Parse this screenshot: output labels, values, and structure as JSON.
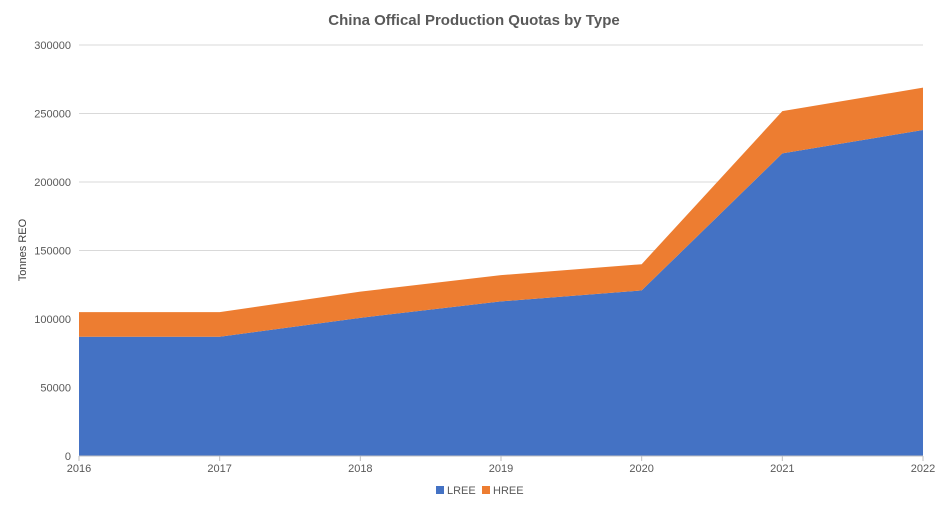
{
  "chart_data": {
    "type": "area",
    "stacked": true,
    "title": "China Offical Production Quotas by Type",
    "xlabel": "",
    "ylabel": "Tonnes REO",
    "categories": [
      "2016",
      "2017",
      "2018",
      "2019",
      "2020",
      "2021",
      "2022"
    ],
    "series": [
      {
        "name": "LREE",
        "color": "#4472C4",
        "values": [
          87000,
          87000,
          100850,
          112850,
          120850,
          220850,
          238000
        ]
      },
      {
        "name": "HREE",
        "color": "#ED7D31",
        "values": [
          18000,
          18000,
          19150,
          19150,
          19150,
          30850,
          30850
        ]
      }
    ],
    "ylim": [
      0,
      300000
    ],
    "yticks": [
      "0",
      "50000",
      "100000",
      "150000",
      "200000",
      "250000",
      "300000"
    ],
    "grid": "horizontal",
    "legend_position": "bottom-center"
  }
}
